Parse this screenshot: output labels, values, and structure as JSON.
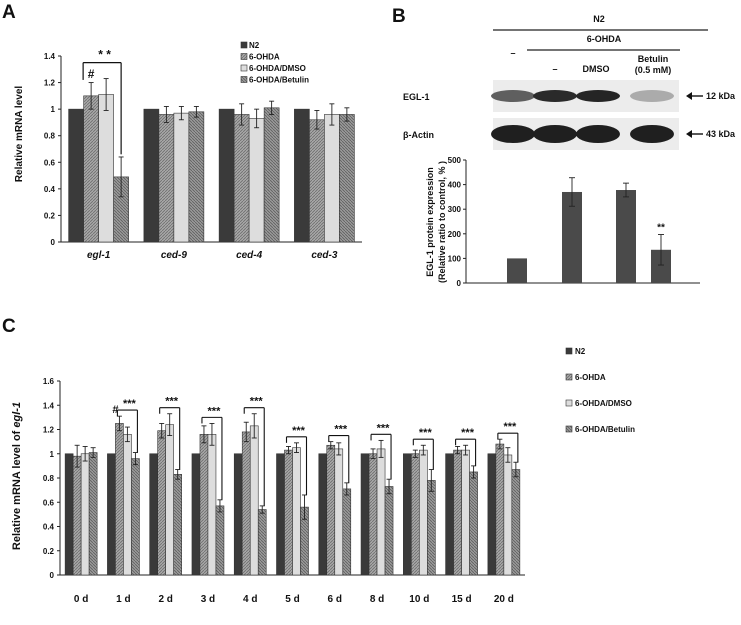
{
  "panel_labels": {
    "a": "A",
    "b": "B",
    "c": "C"
  },
  "colors": {
    "n2": "#3a3a3a",
    "ohda": "#9a9a9a",
    "dmso": "#dddddd",
    "betulin": "#8a8a8a",
    "blot_bar": "#4a4a4a"
  },
  "legend": [
    "N2",
    "6-OHDA",
    "6-OHDA/DMSO",
    "6-OHDA/Betulin"
  ],
  "western_blot": {
    "header_n2": "N2",
    "header_6ohda": "6-OHDA",
    "lane_labels": [
      "–",
      "–",
      "DMSO",
      "Betulin"
    ],
    "betulin_conc": "(0.5 mM)",
    "rows": [
      {
        "label": "EGL-1",
        "size": "12 kDa",
        "intensity": [
          0.65,
          0.9,
          0.92,
          0.3
        ]
      },
      {
        "label": "β-Actin",
        "size": "43 kDa",
        "intensity": [
          0.95,
          0.95,
          0.95,
          0.95
        ]
      }
    ]
  },
  "chart_data": [
    {
      "id": "A",
      "type": "bar",
      "categories": [
        "egl-1",
        "ced-9",
        "ced-4",
        "ced-3"
      ],
      "series": [
        {
          "name": "N2",
          "values": [
            1.0,
            1.0,
            1.0,
            1.0
          ],
          "errors": [
            0,
            0,
            0,
            0
          ]
        },
        {
          "name": "6-OHDA",
          "values": [
            1.1,
            0.96,
            0.96,
            0.92
          ],
          "errors": [
            0.1,
            0.06,
            0.08,
            0.07
          ]
        },
        {
          "name": "6-OHDA/DMSO",
          "values": [
            1.11,
            0.97,
            0.93,
            0.96
          ],
          "errors": [
            0.12,
            0.05,
            0.07,
            0.08
          ]
        },
        {
          "name": "6-OHDA/Betulin",
          "values": [
            0.49,
            0.98,
            1.01,
            0.96
          ],
          "errors": [
            0.15,
            0.04,
            0.05,
            0.05
          ]
        }
      ],
      "ylabel": "Relative mRNA level",
      "ylim": [
        0,
        1.4
      ],
      "yticks": [
        "0",
        "0.2",
        "0.4",
        "0.6",
        "0.8",
        "1",
        "1.2",
        "1.4"
      ],
      "annotations": {
        "hash": "#",
        "stars": "* *"
      },
      "legend_position": "top-right"
    },
    {
      "id": "B",
      "type": "bar",
      "categories": [
        "N2",
        "6-OHDA",
        "6-OHDA/DMSO",
        "6-OHDA/Betulin"
      ],
      "values": [
        100,
        370,
        378,
        135
      ],
      "errors": [
        0,
        58,
        28,
        62
      ],
      "ylabel_line1": "EGL-1 protein expression",
      "ylabel_line2": "(Relative ratio to control, % )",
      "ylim": [
        0,
        500
      ],
      "yticks": [
        "0",
        "100",
        "200",
        "300",
        "400",
        "500"
      ],
      "annotation": "**"
    },
    {
      "id": "C",
      "type": "bar",
      "categories": [
        "0 d",
        "1 d",
        "2 d",
        "3 d",
        "4 d",
        "5 d",
        "6 d",
        "8 d",
        "10 d",
        "15 d",
        "20 d"
      ],
      "series": [
        {
          "name": "N2",
          "values": [
            1.0,
            1.0,
            1.0,
            1.0,
            1.0,
            1.0,
            1.0,
            1.0,
            1.0,
            1.0,
            1.0
          ],
          "errors": [
            0,
            0,
            0,
            0,
            0,
            0,
            0,
            0,
            0,
            0,
            0
          ]
        },
        {
          "name": "6-OHDA",
          "values": [
            0.98,
            1.25,
            1.19,
            1.16,
            1.18,
            1.03,
            1.07,
            1.0,
            1.0,
            1.03,
            1.08
          ]
        },
        {
          "name": "6-OHDA/DMSO",
          "values": [
            1.0,
            1.16,
            1.24,
            1.16,
            1.23,
            1.05,
            1.04,
            1.04,
            1.03,
            1.03,
            0.99
          ]
        },
        {
          "name": "6-OHDA/Betulin",
          "values": [
            1.01,
            0.96,
            0.83,
            0.57,
            0.54,
            0.56,
            0.71,
            0.73,
            0.78,
            0.85,
            0.87
          ]
        }
      ],
      "errors": {
        "6-OHDA": [
          0.09,
          0.06,
          0.06,
          0.07,
          0.08,
          0.03,
          0.03,
          0.04,
          0.03,
          0.03,
          0.04
        ],
        "6-OHDA/DMSO": [
          0.06,
          0.06,
          0.09,
          0.09,
          0.1,
          0.04,
          0.05,
          0.07,
          0.04,
          0.04,
          0.06
        ],
        "6-OHDA/Betulin": [
          0.04,
          0.05,
          0.04,
          0.05,
          0.03,
          0.1,
          0.05,
          0.06,
          0.09,
          0.05,
          0.06
        ]
      },
      "ylabel_prefix": "Relative mRNA level of ",
      "ylabel_italic": "egl-1",
      "ylim": [
        0,
        1.6
      ],
      "yticks": [
        "0",
        "0.2",
        "0.4",
        "0.6",
        "0.8",
        "1",
        "1.2",
        "1.4",
        "1.6"
      ],
      "annotations": {
        "hash": "#",
        "stars": "***"
      },
      "legend_position": "right"
    }
  ]
}
